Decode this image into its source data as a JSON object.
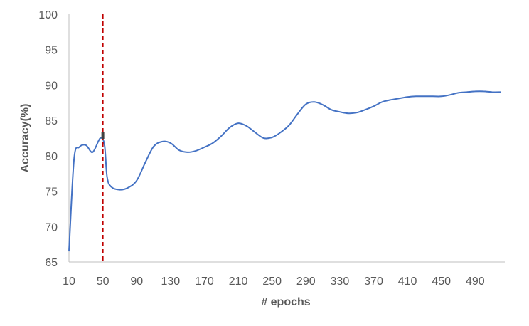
{
  "chart_data": {
    "type": "line",
    "title": "",
    "xlabel": "# epochs",
    "ylabel": "Accuracy(%)",
    "xlim": [
      10,
      525
    ],
    "ylim": [
      65,
      100
    ],
    "grid": false,
    "x_ticks": [
      10,
      50,
      90,
      130,
      170,
      210,
      250,
      290,
      330,
      370,
      410,
      450,
      490
    ],
    "y_ticks": [
      65,
      70,
      75,
      80,
      85,
      90,
      95,
      100
    ],
    "colors": {
      "line": "#4472c4",
      "marker_line": "#c00000",
      "axis": "#bfbfbf",
      "text": "#595959"
    },
    "series": [
      {
        "x": [
          10,
          16,
          22,
          30,
          38,
          47,
          52,
          55,
          60,
          70,
          80,
          90,
          100,
          110,
          120,
          130,
          140,
          150,
          160,
          170,
          180,
          190,
          200,
          210,
          220,
          230,
          240,
          250,
          260,
          270,
          280,
          290,
          300,
          310,
          320,
          330,
          340,
          350,
          360,
          370,
          380,
          390,
          400,
          410,
          420,
          430,
          440,
          450,
          460,
          470,
          480,
          490,
          500,
          510,
          520
        ],
        "y": [
          66.5,
          79.5,
          81.2,
          81.5,
          80.5,
          82.5,
          81.5,
          77.0,
          75.6,
          75.2,
          75.5,
          76.5,
          79.0,
          81.3,
          82.0,
          81.8,
          80.8,
          80.5,
          80.7,
          81.2,
          81.8,
          82.8,
          84.0,
          84.6,
          84.2,
          83.3,
          82.5,
          82.6,
          83.3,
          84.3,
          85.9,
          87.3,
          87.6,
          87.2,
          86.5,
          86.2,
          86.0,
          86.1,
          86.5,
          87.0,
          87.6,
          87.9,
          88.1,
          88.3,
          88.4,
          88.4,
          88.4,
          88.4,
          88.6,
          88.9,
          89.0,
          89.1,
          89.1,
          89.0,
          89.0
        ]
      }
    ],
    "vertical_line_x": 50
  }
}
